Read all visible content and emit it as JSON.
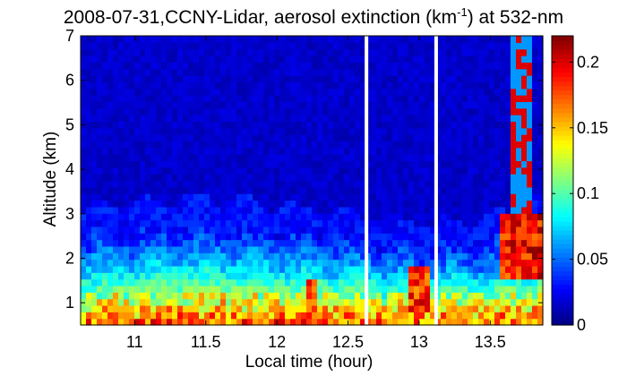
{
  "chart_data": {
    "type": "heatmap",
    "title_main": "2008-07-31,CCNY-Lidar, aerosol extinction (km",
    "title_sup": "-1",
    "title_end": ") at 532-nm",
    "xlabel": "Local time (hour)",
    "ylabel": "Altitude (km)",
    "xlim": [
      10.62,
      13.87
    ],
    "ylim": [
      0.5,
      7
    ],
    "xticks": [
      11,
      11.5,
      12,
      12.5,
      13,
      13.5
    ],
    "xtick_labels": [
      "11",
      "11.5",
      "12",
      "12.5",
      "13",
      "13.5"
    ],
    "yticks": [
      1,
      2,
      3,
      4,
      5,
      6,
      7
    ],
    "ytick_labels": [
      "1",
      "2",
      "3",
      "4",
      "5",
      "6",
      "7"
    ],
    "colorbar": {
      "range": [
        0,
        0.22
      ],
      "ticks": [
        0,
        0.05,
        0.1,
        0.15,
        0.2
      ],
      "tick_labels": [
        "0",
        "0.05",
        "0.1",
        "0.15",
        "0.2"
      ]
    },
    "data_gaps_hours": [
      12.63,
      13.12
    ],
    "features": {
      "boundary_layer_top_km": [
        {
          "t": 10.62,
          "z": 2.6
        },
        {
          "t": 11.0,
          "z": 2.75
        },
        {
          "t": 11.5,
          "z": 2.9
        },
        {
          "t": 12.0,
          "z": 2.7
        },
        {
          "t": 12.5,
          "z": 2.55
        },
        {
          "t": 13.0,
          "z": 2.3
        },
        {
          "t": 13.5,
          "z": 2.4
        },
        {
          "t": 13.87,
          "z": 2.9
        }
      ],
      "surface_layer_peak_extinction": 0.17,
      "background_extinction": 0.01,
      "clouds": [
        {
          "t_start": 12.22,
          "t_end": 12.28,
          "z_bottom": 0.5,
          "z_top": 1.5,
          "extinction": 0.21
        },
        {
          "t_start": 12.93,
          "t_end": 13.08,
          "z_bottom": 0.8,
          "z_top": 1.9,
          "extinction": 0.21
        },
        {
          "t_start": 13.55,
          "t_end": 13.87,
          "z_bottom": 1.6,
          "z_top": 3.0,
          "extinction": 0.22
        },
        {
          "t_start": 13.64,
          "t_end": 13.8,
          "z_bottom": 3.0,
          "z_top": 7.0,
          "extinction": 0.2
        }
      ]
    }
  }
}
